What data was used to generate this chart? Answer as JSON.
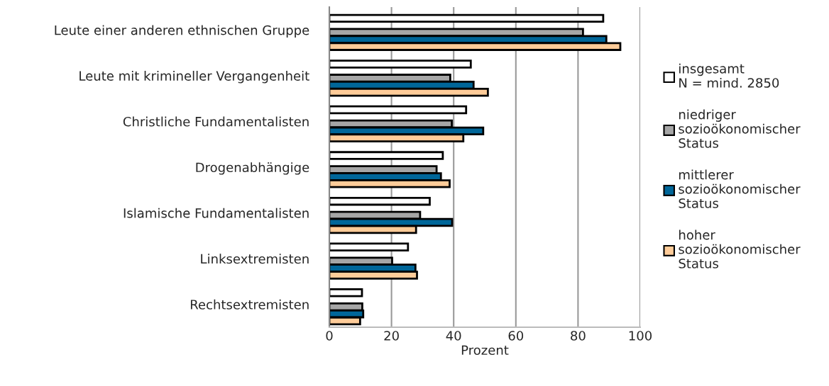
{
  "chart_data": {
    "type": "bar",
    "orientation": "horizontal",
    "xlabel": "Prozent",
    "categories": [
      "Leute einer anderen ethnischen Gruppe",
      "Leute mit krimineller Vergangenheit",
      "Christliche Fundamentalisten",
      "Drogenabhängige",
      "Islamische Fundamentalisten",
      "Linksextremisten",
      "Rechtsextremisten"
    ],
    "series": [
      {
        "name": "insgesamt\nN = mind. 2850",
        "color": "#ffffff",
        "values": [
          88.1,
          45.5,
          44.0,
          36.5,
          32.3,
          25.3,
          10.5
        ]
      },
      {
        "name": "niedriger\nsozioökonomischer\nStatus",
        "color": "#a6a6a6",
        "values": [
          81.6,
          38.9,
          39.4,
          34.5,
          29.2,
          20.2,
          10.6
        ]
      },
      {
        "name": "mittlerer\nsozioökonomischer\nStatus",
        "color": "#006699",
        "values": [
          89.1,
          46.4,
          49.5,
          35.9,
          39.5,
          27.7,
          10.9
        ]
      },
      {
        "name": "hoher\nsozioökonomischer\nStatus",
        "color": "#ffcc99",
        "values": [
          93.6,
          51.0,
          43.1,
          38.7,
          27.9,
          28.2,
          9.9
        ]
      }
    ],
    "xlim": [
      0,
      100
    ],
    "xticks": [
      0,
      20,
      40,
      60,
      80,
      100
    ],
    "grid": "x",
    "legend": "right"
  }
}
